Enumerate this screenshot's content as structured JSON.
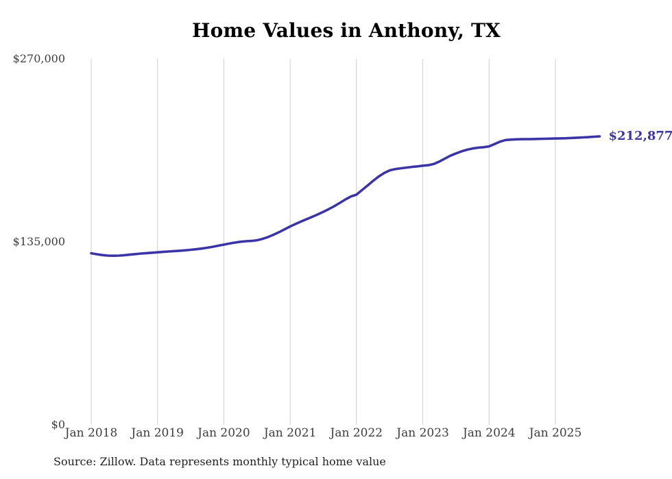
{
  "title": "Home Values in Anthony, TX",
  "source_note": "Source: Zillow. Data represents monthly typical home value",
  "end_label": "$212,877",
  "colors": {
    "line": "#3b34a6",
    "end_label_text": "#3b34a6",
    "grid": "#cccccc",
    "axis_text": "#3d3d3d",
    "title_text": "#000000",
    "background": "#ffffff"
  },
  "chart_data": {
    "type": "line",
    "title": "Home Values in Anthony, TX",
    "xlabel": "",
    "ylabel": "",
    "ylim": [
      0,
      270000
    ],
    "grid": "vertical-only",
    "legend": "none",
    "y_ticks": [
      {
        "value": 270000,
        "label": "$270,000"
      },
      {
        "value": 135000,
        "label": "$135,000"
      },
      {
        "value": 0,
        "label": "$0"
      }
    ],
    "x_ticks": [
      {
        "month_index": 0,
        "label": "Jan 2018"
      },
      {
        "month_index": 12,
        "label": "Jan 2019"
      },
      {
        "month_index": 24,
        "label": "Jan 2020"
      },
      {
        "month_index": 36,
        "label": "Jan 2021"
      },
      {
        "month_index": 48,
        "label": "Jan 2022"
      },
      {
        "month_index": 60,
        "label": "Jan 2023"
      },
      {
        "month_index": 72,
        "label": "Jan 2024"
      },
      {
        "month_index": 84,
        "label": "Jan 2025"
      }
    ],
    "series": [
      {
        "name": "Monthly typical home value",
        "start_month": "2018-01",
        "end_month": "2025-09",
        "values": [
          126600,
          125900,
          125300,
          124900,
          124800,
          124900,
          125200,
          125600,
          126000,
          126400,
          126700,
          127000,
          127300,
          127600,
          127900,
          128200,
          128500,
          128800,
          129200,
          129600,
          130100,
          130700,
          131400,
          132200,
          133000,
          133800,
          134500,
          135100,
          135500,
          135700,
          136200,
          137200,
          138600,
          140300,
          142200,
          144300,
          146400,
          148300,
          150100,
          151800,
          153500,
          155300,
          157200,
          159200,
          161400,
          163800,
          166300,
          168500,
          169900,
          173200,
          176600,
          180000,
          183200,
          185800,
          187800,
          188700,
          189300,
          189800,
          190300,
          190700,
          191200,
          191600,
          192500,
          194300,
          196500,
          198600,
          200300,
          201800,
          203000,
          203900,
          204500,
          204900,
          205500,
          207200,
          209000,
          210200,
          210500,
          210700,
          210800,
          210800,
          210900,
          211000,
          211100,
          211200,
          211300,
          211400,
          211500,
          211700,
          211900,
          212100,
          212300,
          212600,
          212877
        ]
      }
    ],
    "end_value": 212877,
    "end_value_label": "$212,877"
  }
}
